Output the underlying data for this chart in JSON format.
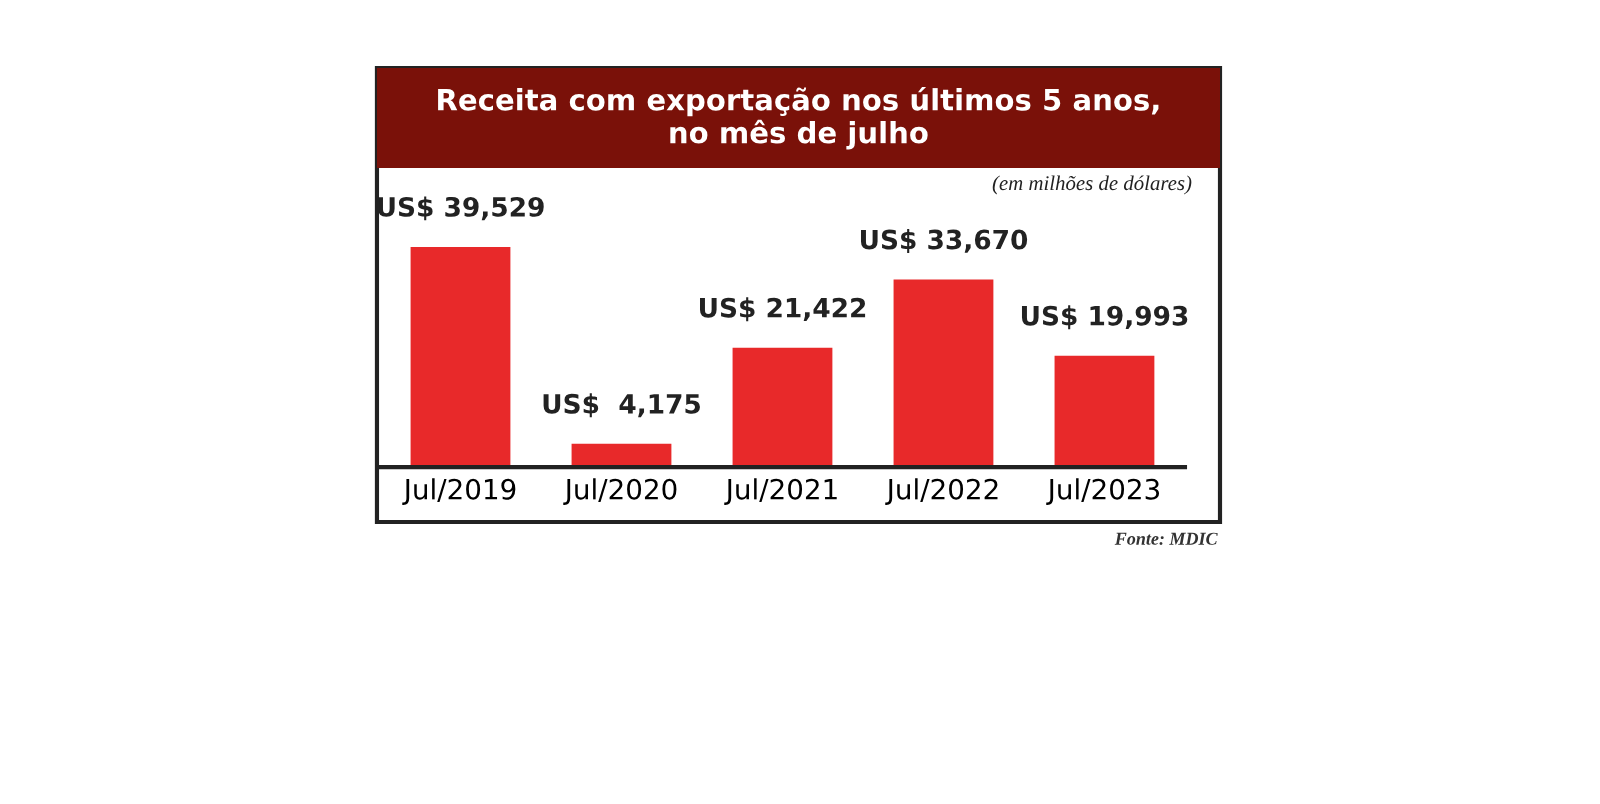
{
  "chart_data": {
    "type": "bar",
    "title": "Receita com exportação nos últimos 5 anos,\nno mês de julho",
    "subtitle": "(em milhões de dólares)",
    "categories": [
      "Jul/2019",
      "Jul/2020",
      "Jul/2021",
      "Jul/2022",
      "Jul/2023"
    ],
    "values": [
      39529,
      4175,
      21422,
      33670,
      19993
    ],
    "value_labels": [
      "US$ 39,529",
      "US$  4,175",
      "US$ 21,422",
      "US$ 33,670",
      "US$ 19,993"
    ],
    "color": "#e8292a",
    "tick_labels": "x",
    "grid": false,
    "annotations": [
      "Fonte: MDIC"
    ]
  }
}
